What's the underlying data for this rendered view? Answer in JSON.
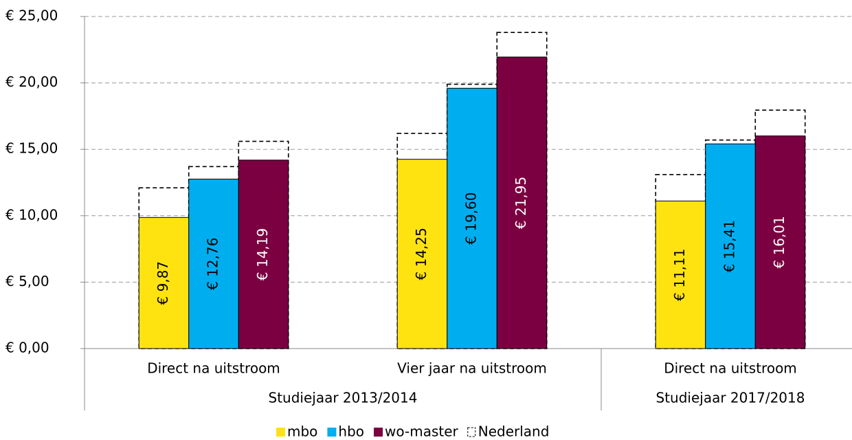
{
  "chart_data": {
    "type": "bar",
    "categories": [
      "Direct na uitstroom",
      "Vier jaar na uitstroom",
      "Direct na uitstroom"
    ],
    "category_groups": [
      "Studiejaar 2013/2014",
      "Studiejaar 2013/2014",
      "Studiejaar 2017/2018"
    ],
    "series": [
      {
        "name": "mbo",
        "color": "#FFE311",
        "label_color": "#000000",
        "values": [
          9.87,
          14.25,
          11.11
        ],
        "value_labels": [
          "€ 9,87",
          "€ 14,25",
          "€ 11,11"
        ]
      },
      {
        "name": "hbo",
        "color": "#00AEEF",
        "label_color": "#000000",
        "values": [
          12.76,
          19.6,
          15.41
        ],
        "value_labels": [
          "€ 12,76",
          "€ 19,60",
          "€ 15,41"
        ]
      },
      {
        "name": "wo-master",
        "color": "#7B0041",
        "label_color": "#FFFFFF",
        "values": [
          14.19,
          21.95,
          16.01
        ],
        "value_labels": [
          "€ 14,19",
          "€ 21,95",
          "€ 16,01"
        ]
      }
    ],
    "reference_series": {
      "name": "Nederland",
      "color": "#000000",
      "style": "dashed",
      "values": [
        [
          12.1,
          13.7,
          15.6
        ],
        [
          16.2,
          19.9,
          23.8
        ],
        [
          13.1,
          15.7,
          17.95
        ]
      ]
    },
    "ylim": [
      0,
      25
    ],
    "yticks": [
      {
        "value": 0,
        "label": "€ 0,00"
      },
      {
        "value": 5,
        "label": "€ 5,00"
      },
      {
        "value": 10,
        "label": "€ 10,00"
      },
      {
        "value": 15,
        "label": "€ 15,00"
      },
      {
        "value": 20,
        "label": "€ 20,00"
      },
      {
        "value": 25,
        "label": "€ 25,00"
      }
    ],
    "grid": true,
    "legend": "bottom"
  }
}
